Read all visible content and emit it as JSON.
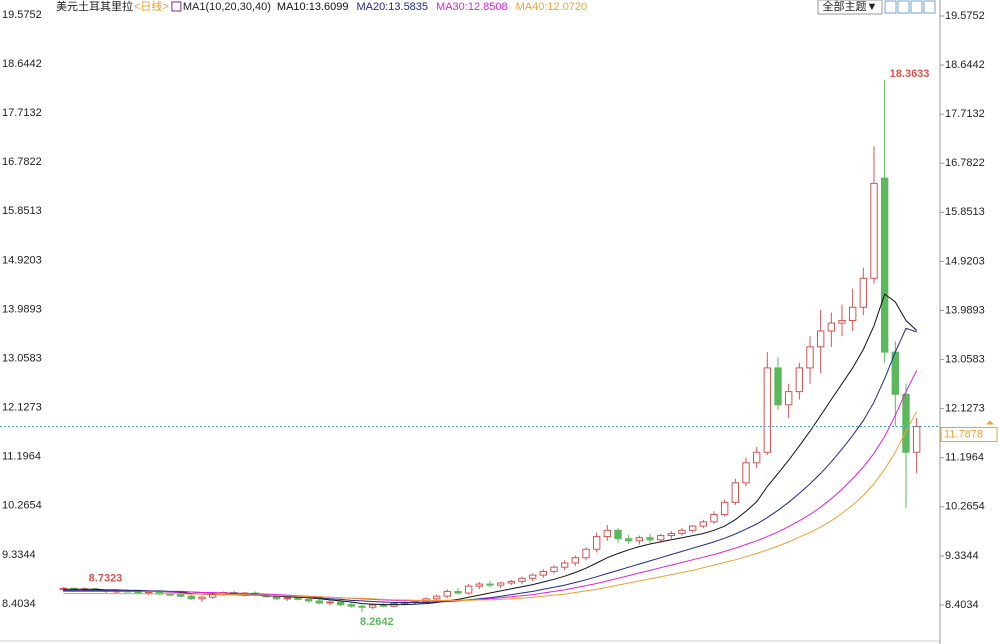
{
  "chart_data": {
    "type": "candlestick",
    "title": "美元土耳其里拉",
    "period": "<日线>",
    "indicator": "MA1(10,20,30,40)",
    "theme_button": "全部主题▼",
    "up_color": "#d9534f",
    "down_color": "#5cb85c",
    "ylim": [
      7.739,
      19.5752
    ],
    "yticks": [
      8.4034,
      9.3344,
      10.2654,
      11.1964,
      12.1273,
      13.0583,
      13.9893,
      14.9203,
      15.8513,
      16.7822,
      17.7132,
      18.6442,
      19.5752
    ],
    "ohlc": [
      [
        8.7,
        8.74,
        8.66,
        8.72
      ],
      [
        8.72,
        8.73,
        8.68,
        8.69
      ],
      [
        8.69,
        8.7323,
        8.65,
        8.71
      ],
      [
        8.71,
        8.72,
        8.66,
        8.68
      ],
      [
        8.68,
        8.7,
        8.63,
        8.66
      ],
      [
        8.66,
        8.69,
        8.62,
        8.67
      ],
      [
        8.67,
        8.7,
        8.64,
        8.65
      ],
      [
        8.65,
        8.67,
        8.6,
        8.62
      ],
      [
        8.62,
        8.66,
        8.59,
        8.64
      ],
      [
        8.64,
        8.66,
        8.6,
        8.61
      ],
      [
        8.61,
        8.64,
        8.57,
        8.6
      ],
      [
        8.6,
        8.63,
        8.55,
        8.57
      ],
      [
        8.57,
        8.6,
        8.5,
        8.52
      ],
      [
        8.52,
        8.58,
        8.46,
        8.55
      ],
      [
        8.55,
        8.62,
        8.52,
        8.6
      ],
      [
        8.6,
        8.66,
        8.58,
        8.64
      ],
      [
        8.64,
        8.67,
        8.6,
        8.62
      ],
      [
        8.62,
        8.65,
        8.58,
        8.63
      ],
      [
        8.63,
        8.66,
        8.57,
        8.59
      ],
      [
        8.59,
        8.62,
        8.54,
        8.56
      ],
      [
        8.56,
        8.6,
        8.5,
        8.52
      ],
      [
        8.52,
        8.57,
        8.48,
        8.54
      ],
      [
        8.54,
        8.58,
        8.49,
        8.51
      ],
      [
        8.51,
        8.55,
        8.45,
        8.48
      ],
      [
        8.48,
        8.52,
        8.42,
        8.44
      ],
      [
        8.44,
        8.49,
        8.4,
        8.46
      ],
      [
        8.46,
        8.48,
        8.38,
        8.41
      ],
      [
        8.41,
        8.45,
        8.35,
        8.38
      ],
      [
        8.38,
        8.41,
        8.2642,
        8.36
      ],
      [
        8.36,
        8.42,
        8.33,
        8.4
      ],
      [
        8.4,
        8.44,
        8.36,
        8.38
      ],
      [
        8.38,
        8.45,
        8.36,
        8.43
      ],
      [
        8.43,
        8.47,
        8.4,
        8.45
      ],
      [
        8.45,
        8.5,
        8.42,
        8.47
      ],
      [
        8.47,
        8.55,
        8.44,
        8.52
      ],
      [
        8.52,
        8.6,
        8.48,
        8.57
      ],
      [
        8.57,
        8.7,
        8.54,
        8.66
      ],
      [
        8.66,
        8.72,
        8.6,
        8.63
      ],
      [
        8.63,
        8.8,
        8.6,
        8.76
      ],
      [
        8.76,
        8.84,
        8.7,
        8.8
      ],
      [
        8.8,
        8.86,
        8.74,
        8.78
      ],
      [
        8.78,
        8.84,
        8.72,
        8.82
      ],
      [
        8.82,
        8.88,
        8.78,
        8.85
      ],
      [
        8.85,
        8.94,
        8.8,
        8.91
      ],
      [
        8.91,
        9.0,
        8.86,
        8.97
      ],
      [
        8.97,
        9.08,
        8.92,
        9.04
      ],
      [
        9.04,
        9.15,
        9.0,
        9.12
      ],
      [
        9.12,
        9.25,
        9.06,
        9.2
      ],
      [
        9.2,
        9.34,
        9.14,
        9.3
      ],
      [
        9.3,
        9.5,
        9.25,
        9.46
      ],
      [
        9.46,
        9.78,
        9.4,
        9.7
      ],
      [
        9.7,
        9.92,
        9.62,
        9.82
      ],
      [
        9.82,
        9.86,
        9.58,
        9.66
      ],
      [
        9.66,
        9.74,
        9.56,
        9.62
      ],
      [
        9.62,
        9.72,
        9.55,
        9.68
      ],
      [
        9.68,
        9.76,
        9.58,
        9.64
      ],
      [
        9.64,
        9.75,
        9.6,
        9.72
      ],
      [
        9.72,
        9.8,
        9.66,
        9.76
      ],
      [
        9.76,
        9.86,
        9.72,
        9.82
      ],
      [
        9.82,
        9.92,
        9.78,
        9.9
      ],
      [
        9.9,
        10.02,
        9.86,
        9.98
      ],
      [
        9.98,
        10.18,
        9.94,
        10.12
      ],
      [
        10.12,
        10.4,
        10.08,
        10.35
      ],
      [
        10.35,
        10.8,
        10.3,
        10.72
      ],
      [
        10.72,
        11.2,
        10.65,
        11.1
      ],
      [
        11.1,
        11.4,
        11.0,
        11.3
      ],
      [
        11.3,
        13.2,
        11.25,
        12.9
      ],
      [
        12.9,
        13.1,
        12.1,
        12.2
      ],
      [
        12.2,
        12.6,
        11.95,
        12.45
      ],
      [
        12.45,
        13.0,
        12.3,
        12.9
      ],
      [
        12.9,
        13.5,
        12.6,
        13.3
      ],
      [
        13.3,
        14.0,
        12.8,
        13.6
      ],
      [
        13.6,
        13.95,
        13.3,
        13.75
      ],
      [
        13.75,
        14.1,
        13.5,
        13.8
      ],
      [
        13.8,
        14.4,
        13.6,
        14.05
      ],
      [
        14.05,
        14.8,
        13.9,
        14.6
      ],
      [
        14.6,
        17.1,
        14.5,
        16.4
      ],
      [
        16.5,
        18.3633,
        13.0,
        13.2
      ],
      [
        13.2,
        13.4,
        11.8,
        12.4
      ],
      [
        12.4,
        12.6,
        10.25,
        11.3
      ],
      [
        11.3,
        11.95,
        10.9,
        11.7878
      ]
    ],
    "series": [
      {
        "name": "MA10:13.6099",
        "color": "#111111",
        "values": [
          8.7,
          8.7,
          8.7,
          8.7,
          8.69,
          8.69,
          8.68,
          8.68,
          8.67,
          8.66,
          8.65,
          8.64,
          8.62,
          8.61,
          8.6,
          8.6,
          8.6,
          8.59,
          8.59,
          8.58,
          8.57,
          8.56,
          8.55,
          8.54,
          8.52,
          8.5,
          8.48,
          8.46,
          8.43,
          8.42,
          8.41,
          8.41,
          8.41,
          8.42,
          8.43,
          8.45,
          8.48,
          8.51,
          8.55,
          8.59,
          8.63,
          8.67,
          8.71,
          8.75,
          8.79,
          8.84,
          8.89,
          8.95,
          9.02,
          9.1,
          9.2,
          9.3,
          9.38,
          9.45,
          9.51,
          9.56,
          9.6,
          9.64,
          9.68,
          9.72,
          9.76,
          9.82,
          9.9,
          10.02,
          10.18,
          10.36,
          10.65,
          10.9,
          11.15,
          11.42,
          11.7,
          12.0,
          12.3,
          12.6,
          12.9,
          13.25,
          13.7,
          14.3,
          14.15,
          13.8,
          13.6099
        ]
      },
      {
        "name": "MA20:13.5835",
        "color": "#1f2a8c",
        "values": [
          8.68,
          8.68,
          8.68,
          8.68,
          8.68,
          8.68,
          8.68,
          8.67,
          8.67,
          8.67,
          8.66,
          8.66,
          8.65,
          8.64,
          8.63,
          8.63,
          8.62,
          8.61,
          8.6,
          8.59,
          8.58,
          8.57,
          8.56,
          8.55,
          8.54,
          8.52,
          8.51,
          8.49,
          8.48,
          8.47,
          8.46,
          8.45,
          8.45,
          8.45,
          8.45,
          8.46,
          8.47,
          8.48,
          8.5,
          8.52,
          8.54,
          8.57,
          8.6,
          8.63,
          8.66,
          8.7,
          8.74,
          8.78,
          8.83,
          8.88,
          8.94,
          9.0,
          9.06,
          9.12,
          9.18,
          9.24,
          9.3,
          9.36,
          9.42,
          9.48,
          9.54,
          9.6,
          9.67,
          9.75,
          9.84,
          9.94,
          10.06,
          10.2,
          10.35,
          10.52,
          10.7,
          10.9,
          11.12,
          11.36,
          11.62,
          11.9,
          12.25,
          12.7,
          13.2,
          13.65,
          13.5835
        ]
      },
      {
        "name": "MA30:12.8508",
        "color": "#e020e0",
        "values": [
          8.66,
          8.66,
          8.66,
          8.66,
          8.66,
          8.66,
          8.66,
          8.66,
          8.66,
          8.66,
          8.65,
          8.65,
          8.65,
          8.64,
          8.64,
          8.63,
          8.63,
          8.62,
          8.62,
          8.61,
          8.6,
          8.59,
          8.58,
          8.57,
          8.56,
          8.55,
          8.54,
          8.53,
          8.52,
          8.51,
          8.5,
          8.49,
          8.48,
          8.48,
          8.48,
          8.48,
          8.48,
          8.49,
          8.5,
          8.51,
          8.52,
          8.54,
          8.56,
          8.58,
          8.6,
          8.63,
          8.66,
          8.69,
          8.73,
          8.77,
          8.81,
          8.86,
          8.91,
          8.96,
          9.01,
          9.06,
          9.11,
          9.16,
          9.21,
          9.26,
          9.31,
          9.36,
          9.42,
          9.48,
          9.55,
          9.62,
          9.7,
          9.79,
          9.89,
          10.0,
          10.12,
          10.26,
          10.42,
          10.6,
          10.8,
          11.02,
          11.28,
          11.6,
          12.0,
          12.45,
          12.8508
        ]
      },
      {
        "name": "MA40:12.0720",
        "color": "#f0a030",
        "values": [
          8.62,
          8.62,
          8.62,
          8.62,
          8.62,
          8.62,
          8.62,
          8.62,
          8.62,
          8.62,
          8.62,
          8.62,
          8.61,
          8.61,
          8.61,
          8.6,
          8.6,
          8.6,
          8.59,
          8.59,
          8.58,
          8.58,
          8.57,
          8.56,
          8.56,
          8.55,
          8.54,
          8.53,
          8.53,
          8.52,
          8.51,
          8.5,
          8.5,
          8.49,
          8.49,
          8.49,
          8.49,
          8.49,
          8.49,
          8.5,
          8.5,
          8.51,
          8.52,
          8.53,
          8.55,
          8.57,
          8.59,
          8.61,
          8.64,
          8.67,
          8.7,
          8.74,
          8.78,
          8.82,
          8.86,
          8.9,
          8.94,
          8.98,
          9.02,
          9.06,
          9.11,
          9.16,
          9.21,
          9.26,
          9.32,
          9.38,
          9.45,
          9.52,
          9.6,
          9.69,
          9.78,
          9.88,
          10.0,
          10.14,
          10.3,
          10.48,
          10.7,
          10.98,
          11.3,
          11.7,
          12.072
        ]
      }
    ]
  }
}
